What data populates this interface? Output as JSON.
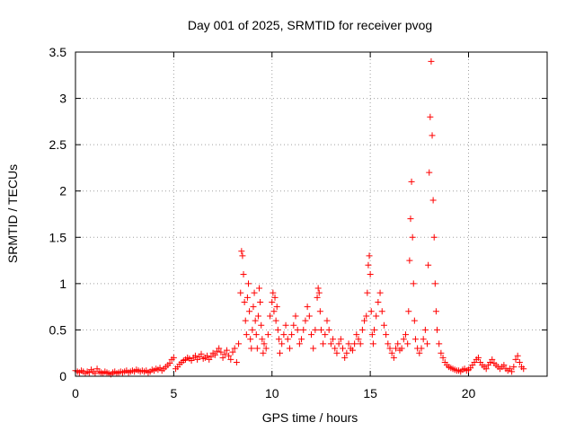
{
  "chart_data": {
    "type": "scatter",
    "title": "Day 001 of 2025, SRMTID for receiver pvog",
    "xlabel": "GPS time / hours",
    "ylabel": "SRMTID / TECUs",
    "xlim": [
      0,
      24
    ],
    "ylim": [
      0,
      3.5
    ],
    "xticks": [
      0,
      5,
      10,
      15,
      20
    ],
    "xtick_labels": [
      "0",
      "5",
      "10",
      "15",
      "20"
    ],
    "yticks": [
      0,
      0.5,
      1,
      1.5,
      2,
      2.5,
      3,
      3.5
    ],
    "ytick_labels": [
      "0",
      "0.5",
      "1",
      "1.5",
      "2",
      "2.5",
      "3",
      "3.5"
    ],
    "grid": true,
    "marker": "+",
    "series": [
      {
        "name": "SRMTID",
        "color": "#ff0000",
        "points": [
          [
            0.0,
            0.06
          ],
          [
            0.1,
            0.05
          ],
          [
            0.2,
            0.04
          ],
          [
            0.3,
            0.06
          ],
          [
            0.4,
            0.05
          ],
          [
            0.5,
            0.03
          ],
          [
            0.6,
            0.05
          ],
          [
            0.7,
            0.04
          ],
          [
            0.8,
            0.07
          ],
          [
            0.9,
            0.05
          ],
          [
            1.0,
            0.03
          ],
          [
            1.1,
            0.08
          ],
          [
            1.2,
            0.05
          ],
          [
            1.3,
            0.04
          ],
          [
            1.4,
            0.03
          ],
          [
            1.5,
            0.05
          ],
          [
            1.6,
            0.04
          ],
          [
            1.7,
            0.03
          ],
          [
            1.8,
            0.02
          ],
          [
            1.9,
            0.04
          ],
          [
            2.0,
            0.05
          ],
          [
            2.1,
            0.03
          ],
          [
            2.2,
            0.04
          ],
          [
            2.3,
            0.05
          ],
          [
            2.4,
            0.04
          ],
          [
            2.5,
            0.05
          ],
          [
            2.6,
            0.06
          ],
          [
            2.7,
            0.04
          ],
          [
            2.8,
            0.05
          ],
          [
            2.9,
            0.06
          ],
          [
            3.0,
            0.05
          ],
          [
            3.1,
            0.07
          ],
          [
            3.2,
            0.06
          ],
          [
            3.3,
            0.05
          ],
          [
            3.4,
            0.06
          ],
          [
            3.5,
            0.05
          ],
          [
            3.6,
            0.06
          ],
          [
            3.7,
            0.04
          ],
          [
            3.8,
            0.05
          ],
          [
            3.9,
            0.07
          ],
          [
            4.0,
            0.06
          ],
          [
            4.1,
            0.08
          ],
          [
            4.2,
            0.07
          ],
          [
            4.3,
            0.09
          ],
          [
            4.4,
            0.06
          ],
          [
            4.5,
            0.08
          ],
          [
            4.6,
            0.1
          ],
          [
            4.7,
            0.12
          ],
          [
            4.8,
            0.14
          ],
          [
            4.9,
            0.18
          ],
          [
            5.0,
            0.2
          ],
          [
            5.1,
            0.08
          ],
          [
            5.2,
            0.1
          ],
          [
            5.3,
            0.13
          ],
          [
            5.4,
            0.15
          ],
          [
            5.5,
            0.17
          ],
          [
            5.6,
            0.18
          ],
          [
            5.7,
            0.2
          ],
          [
            5.8,
            0.19
          ],
          [
            5.9,
            0.17
          ],
          [
            6.0,
            0.2
          ],
          [
            6.1,
            0.22
          ],
          [
            6.2,
            0.18
          ],
          [
            6.3,
            0.21
          ],
          [
            6.4,
            0.24
          ],
          [
            6.5,
            0.19
          ],
          [
            6.6,
            0.2
          ],
          [
            6.7,
            0.22
          ],
          [
            6.8,
            0.18
          ],
          [
            6.9,
            0.21
          ],
          [
            7.0,
            0.25
          ],
          [
            7.1,
            0.23
          ],
          [
            7.2,
            0.27
          ],
          [
            7.3,
            0.3
          ],
          [
            7.4,
            0.26
          ],
          [
            7.5,
            0.2
          ],
          [
            7.6,
            0.24
          ],
          [
            7.7,
            0.28
          ],
          [
            7.8,
            0.22
          ],
          [
            7.9,
            0.18
          ],
          [
            8.0,
            0.26
          ],
          [
            8.1,
            0.3
          ],
          [
            8.2,
            0.15
          ],
          [
            8.3,
            0.35
          ],
          [
            8.4,
            0.9
          ],
          [
            8.45,
            1.35
          ],
          [
            8.5,
            1.3
          ],
          [
            8.55,
            1.1
          ],
          [
            8.6,
            0.8
          ],
          [
            8.65,
            0.6
          ],
          [
            8.7,
            0.45
          ],
          [
            8.75,
            0.85
          ],
          [
            8.8,
            1.0
          ],
          [
            8.85,
            0.7
          ],
          [
            8.9,
            0.4
          ],
          [
            8.95,
            0.3
          ],
          [
            9.0,
            0.5
          ],
          [
            9.05,
            0.75
          ],
          [
            9.1,
            0.9
          ],
          [
            9.15,
            0.6
          ],
          [
            9.2,
            0.45
          ],
          [
            9.25,
            0.3
          ],
          [
            9.3,
            0.65
          ],
          [
            9.35,
            0.95
          ],
          [
            9.4,
            0.8
          ],
          [
            9.45,
            0.55
          ],
          [
            9.5,
            0.4
          ],
          [
            9.55,
            0.25
          ],
          [
            9.6,
            0.35
          ],
          [
            9.7,
            0.3
          ],
          [
            9.8,
            0.45
          ],
          [
            9.9,
            0.65
          ],
          [
            10.0,
            0.8
          ],
          [
            10.05,
            0.9
          ],
          [
            10.1,
            0.7
          ],
          [
            10.15,
            0.85
          ],
          [
            10.2,
            0.6
          ],
          [
            10.25,
            0.75
          ],
          [
            10.3,
            0.5
          ],
          [
            10.35,
            0.4
          ],
          [
            10.4,
            0.25
          ],
          [
            10.5,
            0.35
          ],
          [
            10.6,
            0.45
          ],
          [
            10.7,
            0.55
          ],
          [
            10.8,
            0.4
          ],
          [
            10.9,
            0.3
          ],
          [
            11.0,
            0.45
          ],
          [
            11.1,
            0.55
          ],
          [
            11.2,
            0.65
          ],
          [
            11.3,
            0.5
          ],
          [
            11.4,
            0.35
          ],
          [
            11.5,
            0.4
          ],
          [
            11.6,
            0.5
          ],
          [
            11.7,
            0.6
          ],
          [
            11.8,
            0.75
          ],
          [
            11.9,
            0.65
          ],
          [
            12.0,
            0.45
          ],
          [
            12.1,
            0.3
          ],
          [
            12.2,
            0.5
          ],
          [
            12.3,
            0.85
          ],
          [
            12.35,
            0.95
          ],
          [
            12.4,
            0.9
          ],
          [
            12.45,
            0.7
          ],
          [
            12.5,
            0.5
          ],
          [
            12.6,
            0.35
          ],
          [
            12.7,
            0.45
          ],
          [
            12.8,
            0.6
          ],
          [
            12.9,
            0.5
          ],
          [
            13.0,
            0.35
          ],
          [
            13.1,
            0.4
          ],
          [
            13.2,
            0.3
          ],
          [
            13.3,
            0.25
          ],
          [
            13.4,
            0.35
          ],
          [
            13.5,
            0.4
          ],
          [
            13.6,
            0.3
          ],
          [
            13.7,
            0.2
          ],
          [
            13.8,
            0.25
          ],
          [
            13.9,
            0.35
          ],
          [
            14.0,
            0.3
          ],
          [
            14.1,
            0.28
          ],
          [
            14.2,
            0.35
          ],
          [
            14.3,
            0.45
          ],
          [
            14.4,
            0.4
          ],
          [
            14.5,
            0.35
          ],
          [
            14.6,
            0.5
          ],
          [
            14.7,
            0.6
          ],
          [
            14.8,
            0.65
          ],
          [
            14.85,
            0.9
          ],
          [
            14.9,
            1.2
          ],
          [
            14.95,
            1.3
          ],
          [
            15.0,
            1.1
          ],
          [
            15.05,
            0.7
          ],
          [
            15.1,
            0.45
          ],
          [
            15.15,
            0.35
          ],
          [
            15.2,
            0.5
          ],
          [
            15.3,
            0.65
          ],
          [
            15.4,
            0.8
          ],
          [
            15.5,
            0.9
          ],
          [
            15.6,
            0.7
          ],
          [
            15.7,
            0.55
          ],
          [
            15.8,
            0.45
          ],
          [
            15.9,
            0.35
          ],
          [
            16.0,
            0.3
          ],
          [
            16.1,
            0.25
          ],
          [
            16.2,
            0.2
          ],
          [
            16.3,
            0.3
          ],
          [
            16.4,
            0.35
          ],
          [
            16.5,
            0.28
          ],
          [
            16.6,
            0.3
          ],
          [
            16.7,
            0.4
          ],
          [
            16.8,
            0.45
          ],
          [
            16.9,
            0.35
          ],
          [
            16.95,
            0.7
          ],
          [
            17.0,
            1.25
          ],
          [
            17.05,
            1.7
          ],
          [
            17.1,
            2.1
          ],
          [
            17.15,
            1.5
          ],
          [
            17.2,
            1.0
          ],
          [
            17.25,
            0.6
          ],
          [
            17.3,
            0.4
          ],
          [
            17.4,
            0.3
          ],
          [
            17.5,
            0.25
          ],
          [
            17.6,
            0.3
          ],
          [
            17.7,
            0.4
          ],
          [
            17.8,
            0.5
          ],
          [
            17.9,
            0.35
          ],
          [
            17.95,
            1.2
          ],
          [
            18.0,
            2.2
          ],
          [
            18.05,
            2.8
          ],
          [
            18.1,
            3.4
          ],
          [
            18.15,
            2.6
          ],
          [
            18.2,
            1.9
          ],
          [
            18.25,
            1.5
          ],
          [
            18.3,
            1.0
          ],
          [
            18.35,
            0.7
          ],
          [
            18.4,
            0.5
          ],
          [
            18.5,
            0.35
          ],
          [
            18.6,
            0.25
          ],
          [
            18.7,
            0.2
          ],
          [
            18.8,
            0.15
          ],
          [
            18.9,
            0.12
          ],
          [
            19.0,
            0.1
          ],
          [
            19.1,
            0.09
          ],
          [
            19.2,
            0.08
          ],
          [
            19.3,
            0.07
          ],
          [
            19.4,
            0.06
          ],
          [
            19.5,
            0.06
          ],
          [
            19.6,
            0.05
          ],
          [
            19.7,
            0.07
          ],
          [
            19.8,
            0.08
          ],
          [
            19.9,
            0.06
          ],
          [
            20.0,
            0.07
          ],
          [
            20.1,
            0.09
          ],
          [
            20.2,
            0.12
          ],
          [
            20.3,
            0.15
          ],
          [
            20.4,
            0.18
          ],
          [
            20.5,
            0.2
          ],
          [
            20.6,
            0.15
          ],
          [
            20.7,
            0.12
          ],
          [
            20.8,
            0.1
          ],
          [
            20.9,
            0.08
          ],
          [
            21.0,
            0.12
          ],
          [
            21.1,
            0.15
          ],
          [
            21.2,
            0.18
          ],
          [
            21.3,
            0.14
          ],
          [
            21.4,
            0.12
          ],
          [
            21.5,
            0.1
          ],
          [
            21.6,
            0.08
          ],
          [
            21.7,
            0.1
          ],
          [
            21.8,
            0.12
          ],
          [
            21.9,
            0.08
          ],
          [
            22.0,
            0.06
          ],
          [
            22.1,
            0.08
          ],
          [
            22.2,
            0.05
          ],
          [
            22.3,
            0.1
          ],
          [
            22.4,
            0.18
          ],
          [
            22.5,
            0.22
          ],
          [
            22.6,
            0.15
          ],
          [
            22.7,
            0.1
          ],
          [
            22.8,
            0.08
          ]
        ]
      }
    ]
  }
}
